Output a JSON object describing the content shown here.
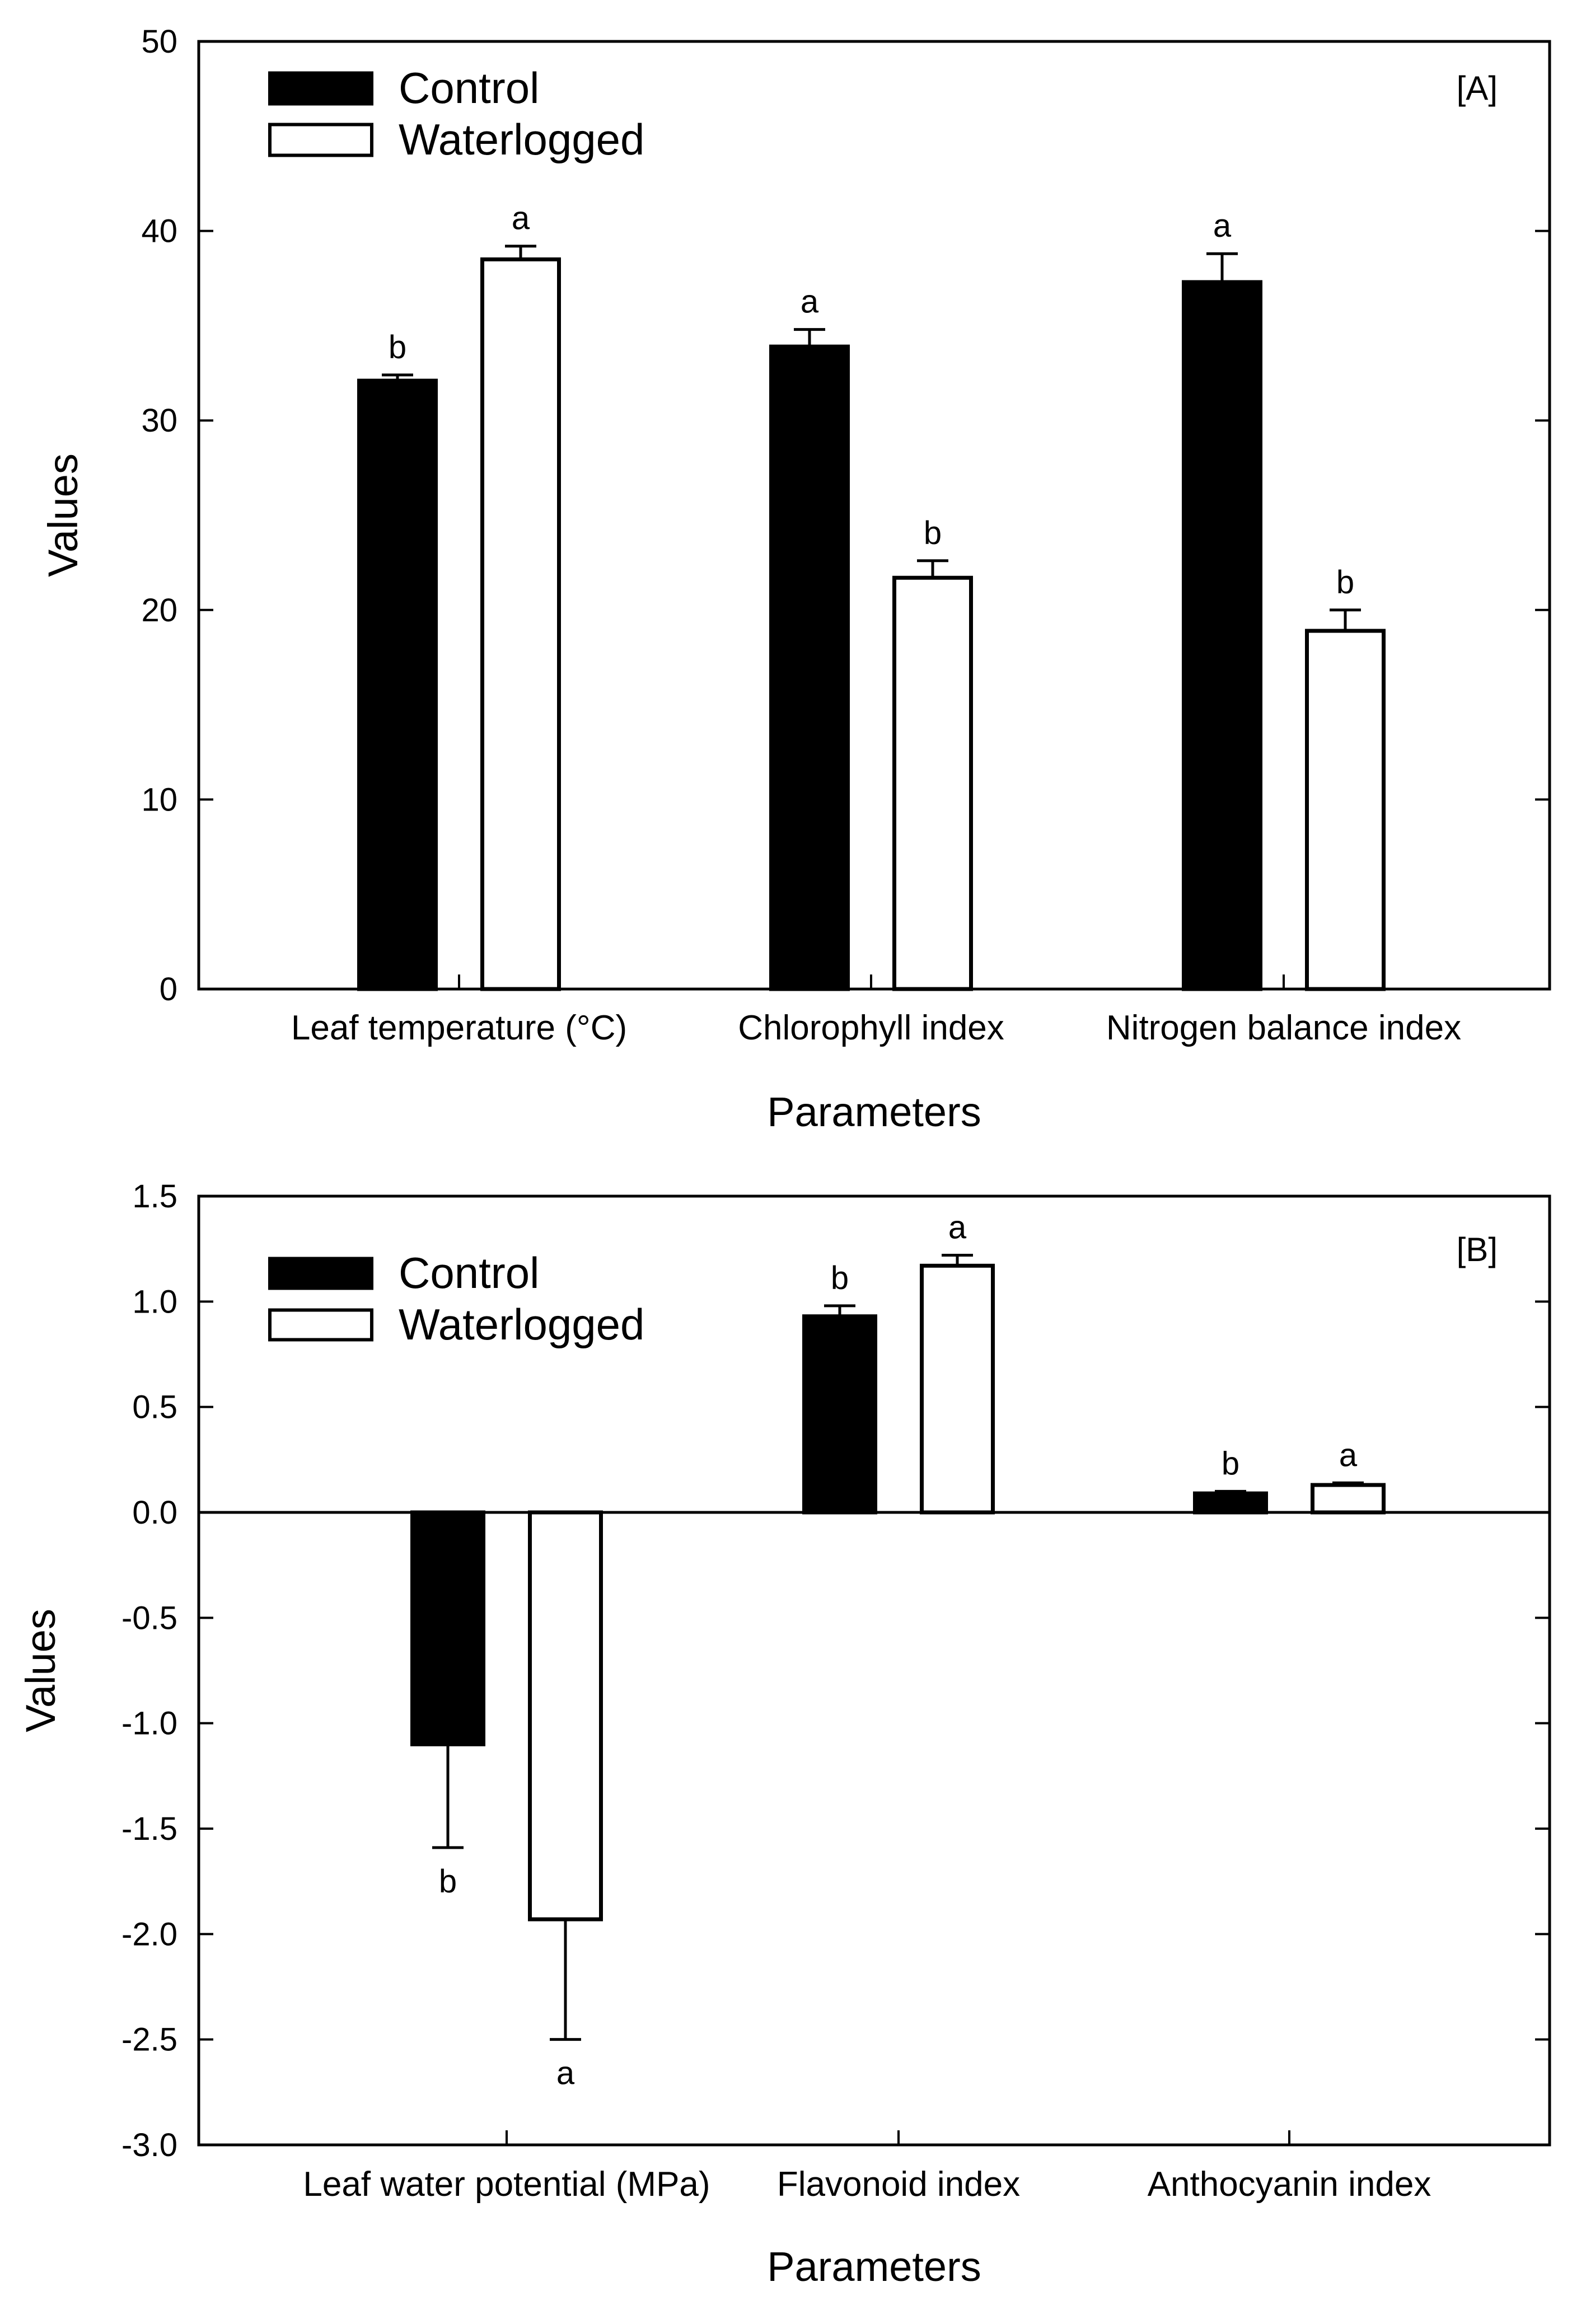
{
  "chart_data": [
    {
      "type": "bar",
      "panel_label": "[A]",
      "categories": [
        "Leaf temperature (°C)",
        "Chlorophyll index",
        "Nitrogen balance index"
      ],
      "series": [
        {
          "name": "Control",
          "color": "#000000",
          "values": [
            32.1,
            33.9,
            37.3
          ],
          "errors": [
            0.3,
            0.9,
            1.5
          ],
          "letters": [
            "b",
            "a",
            "a"
          ]
        },
        {
          "name": "Waterlogged",
          "color": "#ffffff",
          "values": [
            38.5,
            21.7,
            18.9
          ],
          "errors": [
            0.7,
            0.9,
            1.1
          ],
          "letters": [
            "a",
            "b",
            "b"
          ]
        }
      ],
      "xlabel": "Parameters",
      "ylabel": "Values",
      "ylim": [
        0,
        50
      ],
      "yticks": [
        "0",
        "10",
        "20",
        "30",
        "40",
        "50"
      ],
      "legend_position": "top-left"
    },
    {
      "type": "bar",
      "panel_label": "[B]",
      "categories": [
        "Leaf water potential (MPa)",
        "Flavonoid index",
        "Anthocyanin index"
      ],
      "series": [
        {
          "name": "Control",
          "color": "#000000",
          "values": [
            -1.1,
            0.93,
            0.09
          ],
          "errors": [
            0.49,
            0.05,
            0.01
          ],
          "letters": [
            "b",
            "b",
            "b"
          ]
        },
        {
          "name": "Waterlogged",
          "color": "#ffffff",
          "values": [
            -1.93,
            1.17,
            0.13
          ],
          "errors": [
            0.57,
            0.05,
            0.01
          ],
          "letters": [
            "a",
            "a",
            "a"
          ]
        }
      ],
      "xlabel": "Parameters",
      "ylabel": "Values",
      "ylim": [
        -3.0,
        1.5
      ],
      "yticks": [
        "-3.0",
        "-2.5",
        "-2.0",
        "-1.5",
        "-1.0",
        "-0.5",
        "0.0",
        "0.5",
        "1.0",
        "1.5"
      ],
      "legend_position": "top-left"
    }
  ]
}
